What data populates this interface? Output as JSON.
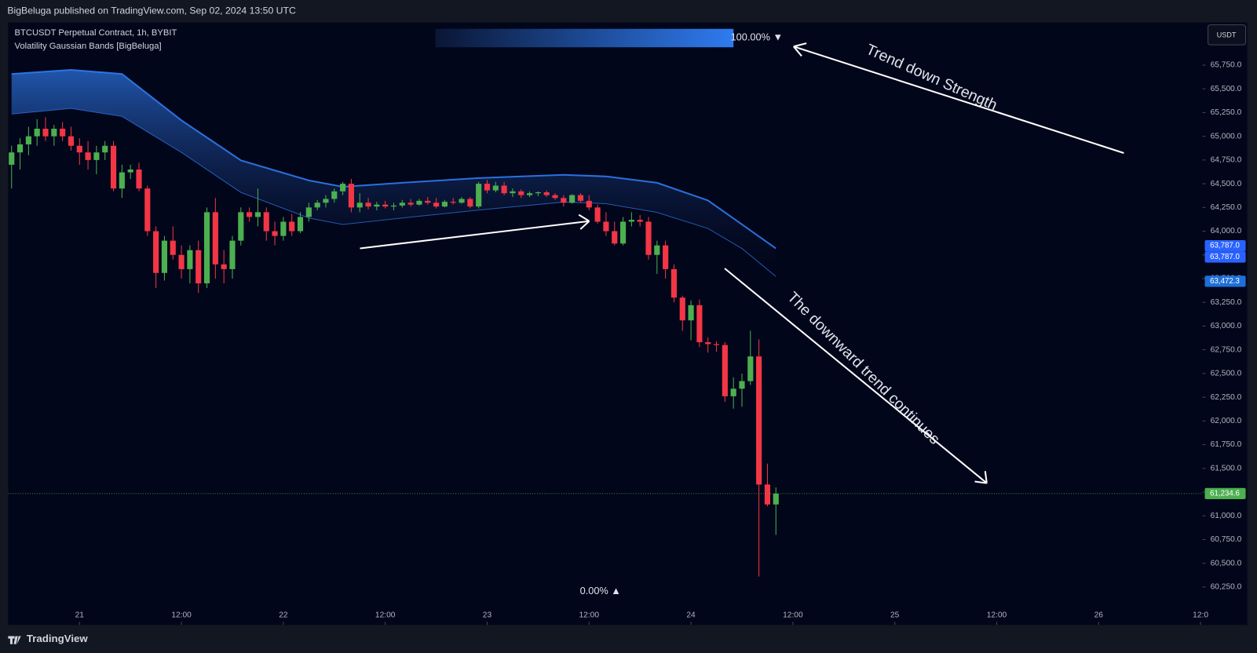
{
  "header": "BigBeluga published on TradingView.com, Sep 02, 2024 13:50 UTC",
  "footer": "TradingView",
  "chart_data": {
    "type": "candlestick",
    "title": "BTCUSDT Perpetual Contract, 1h, BYBIT",
    "subtitle": "Volatility Gaussian Bands  [BigBeluga]",
    "currency": "USDT",
    "up_color": "#4caf50",
    "down_color": "#f23645",
    "ohlc": [
      [
        64700,
        64900,
        64450,
        64830
      ],
      [
        64830,
        64980,
        64650,
        64915
      ],
      [
        64915,
        65100,
        64800,
        65000
      ],
      [
        65000,
        65180,
        64900,
        65080
      ],
      [
        65080,
        65200,
        64950,
        65000
      ],
      [
        65000,
        65120,
        64900,
        65080
      ],
      [
        65080,
        65150,
        64950,
        65000
      ],
      [
        65000,
        65100,
        64850,
        64900
      ],
      [
        64900,
        64980,
        64700,
        64830
      ],
      [
        64830,
        64950,
        64650,
        64750
      ],
      [
        64750,
        64900,
        64600,
        64830
      ],
      [
        64830,
        64950,
        64750,
        64900
      ],
      [
        64900,
        64950,
        64420,
        64450
      ],
      [
        64450,
        64700,
        64350,
        64620
      ],
      [
        64620,
        64700,
        64550,
        64650
      ],
      [
        64650,
        64720,
        64420,
        64450
      ],
      [
        64450,
        64480,
        63950,
        64000
      ],
      [
        64000,
        64050,
        63400,
        63560
      ],
      [
        63560,
        63950,
        63480,
        63900
      ],
      [
        63900,
        64050,
        63700,
        63750
      ],
      [
        63750,
        63850,
        63500,
        63600
      ],
      [
        63600,
        63850,
        63450,
        63800
      ],
      [
        63800,
        63900,
        63350,
        63450
      ],
      [
        63450,
        64250,
        63400,
        64200
      ],
      [
        64200,
        64350,
        63500,
        63650
      ],
      [
        63650,
        63800,
        63450,
        63600
      ],
      [
        63600,
        63950,
        63500,
        63900
      ],
      [
        63900,
        64250,
        63850,
        64200
      ],
      [
        64200,
        64250,
        64100,
        64150
      ],
      [
        64150,
        64450,
        64050,
        64200
      ],
      [
        64200,
        64250,
        63900,
        64000
      ],
      [
        64000,
        64100,
        63850,
        63950
      ],
      [
        63950,
        64150,
        63900,
        64100
      ],
      [
        64100,
        64180,
        63950,
        64000
      ],
      [
        64000,
        64200,
        63980,
        64150
      ],
      [
        64150,
        64300,
        64100,
        64250
      ],
      [
        64250,
        64330,
        64220,
        64300
      ],
      [
        64300,
        64380,
        64250,
        64340
      ],
      [
        64340,
        64450,
        64300,
        64420
      ],
      [
        64420,
        64520,
        64380,
        64500
      ],
      [
        64500,
        64550,
        64200,
        64250
      ],
      [
        64250,
        64400,
        64200,
        64300
      ],
      [
        64300,
        64350,
        64230,
        64260
      ],
      [
        64260,
        64310,
        64220,
        64280
      ],
      [
        64280,
        64320,
        64240,
        64260
      ],
      [
        64260,
        64300,
        64220,
        64270
      ],
      [
        64270,
        64330,
        64250,
        64300
      ],
      [
        64300,
        64340,
        64260,
        64280
      ],
      [
        64280,
        64340,
        64270,
        64320
      ],
      [
        64320,
        64360,
        64280,
        64300
      ],
      [
        64300,
        64350,
        64240,
        64260
      ],
      [
        64260,
        64330,
        64250,
        64310
      ],
      [
        64310,
        64350,
        64280,
        64300
      ],
      [
        64300,
        64360,
        64290,
        64340
      ],
      [
        64340,
        64360,
        64240,
        64260
      ],
      [
        64260,
        64520,
        64240,
        64500
      ],
      [
        64500,
        64540,
        64400,
        64430
      ],
      [
        64430,
        64520,
        64410,
        64480
      ],
      [
        64480,
        64520,
        64380,
        64400
      ],
      [
        64400,
        64450,
        64360,
        64420
      ],
      [
        64420,
        64440,
        64350,
        64380
      ],
      [
        64380,
        64420,
        64360,
        64400
      ],
      [
        64400,
        64420,
        64370,
        64410
      ],
      [
        64410,
        64430,
        64360,
        64380
      ],
      [
        64380,
        64400,
        64330,
        64350
      ],
      [
        64350,
        64380,
        64260,
        64300
      ],
      [
        64300,
        64390,
        64290,
        64380
      ],
      [
        64380,
        64400,
        64300,
        64320
      ],
      [
        64320,
        64380,
        64220,
        64250
      ],
      [
        64250,
        64280,
        64080,
        64100
      ],
      [
        64100,
        64200,
        63950,
        64000
      ],
      [
        64000,
        64100,
        63850,
        63870
      ],
      [
        63870,
        64150,
        63850,
        64100
      ],
      [
        64100,
        64200,
        64050,
        64120
      ],
      [
        64120,
        64170,
        64050,
        64100
      ],
      [
        64100,
        64150,
        63700,
        63750
      ],
      [
        63750,
        63900,
        63550,
        63850
      ],
      [
        63850,
        63900,
        63500,
        63600
      ],
      [
        63600,
        63650,
        63250,
        63300
      ],
      [
        63300,
        63320,
        62950,
        63060
      ],
      [
        63060,
        63270,
        62850,
        63220
      ],
      [
        63220,
        63280,
        62780,
        62830
      ],
      [
        62830,
        62880,
        62720,
        62810
      ],
      [
        62810,
        62840,
        62730,
        62800
      ],
      [
        62800,
        62830,
        62200,
        62260
      ],
      [
        62260,
        62460,
        62130,
        62340
      ],
      [
        62340,
        62500,
        62150,
        62420
      ],
      [
        62420,
        62950,
        62380,
        62680
      ],
      [
        62680,
        62860,
        60360,
        61330
      ],
      [
        61330,
        61550,
        61100,
        61120
      ],
      [
        61120,
        61300,
        60800,
        61235
      ]
    ],
    "bands": {
      "color": "#2f7bf0",
      "x": [
        0,
        7,
        13,
        20,
        27,
        35,
        39,
        46,
        55,
        65,
        70,
        76,
        82,
        86,
        90
      ],
      "upper": [
        65657,
        65700,
        65657,
        65168,
        64746,
        64535,
        64468,
        64510,
        64560,
        64594,
        64577,
        64510,
        64324,
        64071,
        63818
      ],
      "lower": [
        65235,
        65294,
        65210,
        64830,
        64409,
        64139,
        64071,
        64139,
        64223,
        64307,
        64290,
        64198,
        64029,
        63818,
        63523
      ]
    },
    "xlim": [
      -0.5,
      140.5
    ],
    "xticks": [
      {
        "value": 8,
        "label": "21"
      },
      {
        "value": 20,
        "label": "12:00"
      },
      {
        "value": 32,
        "label": "22"
      },
      {
        "value": 44,
        "label": "12:00"
      },
      {
        "value": 56,
        "label": "23"
      },
      {
        "value": 68,
        "label": "12:00"
      },
      {
        "value": 80,
        "label": "24"
      },
      {
        "value": 92,
        "label": "12:00"
      },
      {
        "value": 104,
        "label": "25"
      },
      {
        "value": 116,
        "label": "12:00"
      },
      {
        "value": 128,
        "label": "26"
      },
      {
        "value": 140,
        "label": "12:0"
      }
    ],
    "ylim": [
      59850,
      66200
    ],
    "yticks": [
      {
        "value": 60250,
        "label": "60,250.0"
      },
      {
        "value": 60500,
        "label": "60,500.0"
      },
      {
        "value": 60750,
        "label": "60,750.0"
      },
      {
        "value": 61000,
        "label": "61,000.0"
      },
      {
        "value": 61250,
        "label": "61,250.0"
      },
      {
        "value": 61500,
        "label": "61,500.0"
      },
      {
        "value": 61750,
        "label": "61,750.0"
      },
      {
        "value": 62000,
        "label": "62,000.0"
      },
      {
        "value": 62250,
        "label": "62,250.0"
      },
      {
        "value": 62500,
        "label": "62,500.0"
      },
      {
        "value": 62750,
        "label": "62,750.0"
      },
      {
        "value": 63000,
        "label": "63,000.0"
      },
      {
        "value": 63250,
        "label": "63,250.0"
      },
      {
        "value": 63500,
        "label": "63,500.0"
      },
      {
        "value": 63750,
        "label": "63,750.0"
      },
      {
        "value": 64000,
        "label": "64,000.0"
      },
      {
        "value": 64250,
        "label": "64,250.0"
      },
      {
        "value": 64500,
        "label": "64,500.0"
      },
      {
        "value": 64750,
        "label": "64,750.0"
      },
      {
        "value": 65000,
        "label": "65,000.0"
      },
      {
        "value": 65250,
        "label": "65,250.0"
      },
      {
        "value": 65500,
        "label": "65,500.0"
      },
      {
        "value": 65750,
        "label": "65,750.0"
      }
    ],
    "price_labels": [
      {
        "value": 63787,
        "label": "63,787.0",
        "color": "#2962ff"
      },
      {
        "value": 63787,
        "label": "63,787.0",
        "color": "#2962ff"
      },
      {
        "value": 63472.3,
        "label": "63,472.3",
        "color": "#1e6fd9"
      },
      {
        "value": 61234.6,
        "label": "61,234.6",
        "color": "#4caf50"
      }
    ],
    "strength_labels": [
      {
        "value": 100,
        "label": "100.00% ▼"
      },
      {
        "value": 0,
        "label": "0.00% ▲"
      }
    ],
    "annotations": [
      "Trend down Strength",
      "The downward trend continues"
    ]
  }
}
